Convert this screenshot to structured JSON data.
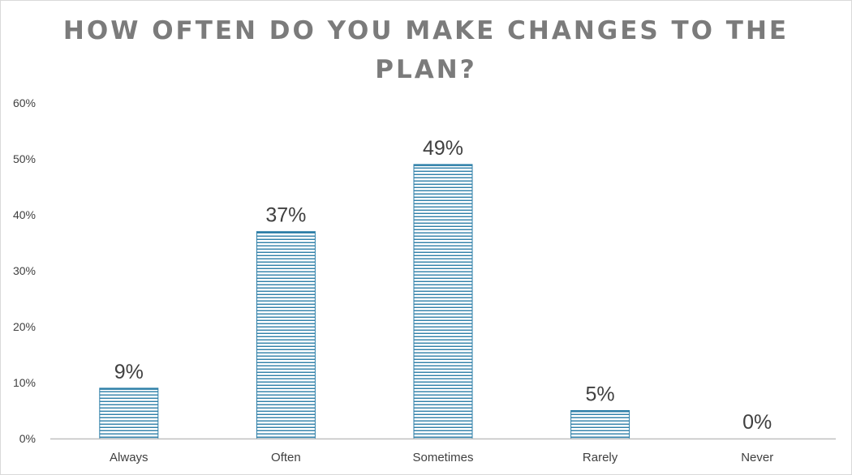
{
  "chart_data": {
    "type": "bar",
    "title_lines": [
      "HOW OFTEN DO YOU MAKE CHANGES TO THE",
      "PLAN?"
    ],
    "categories": [
      "Always",
      "Often",
      "Sometimes",
      "Rarely",
      "Never"
    ],
    "values": [
      9,
      37,
      49,
      5,
      0
    ],
    "data_labels": [
      "9%",
      "37%",
      "49%",
      "5%",
      "0%"
    ],
    "y_ticks": [
      0,
      10,
      20,
      30,
      40,
      50,
      60
    ],
    "y_tick_labels": [
      "0%",
      "10%",
      "20%",
      "30%",
      "40%",
      "50%",
      "60%"
    ],
    "ylim": [
      0,
      60
    ],
    "grid": false,
    "legend": "none",
    "bar_color": "#2e7fa8",
    "bar_stripe_color": "#ffffff"
  }
}
